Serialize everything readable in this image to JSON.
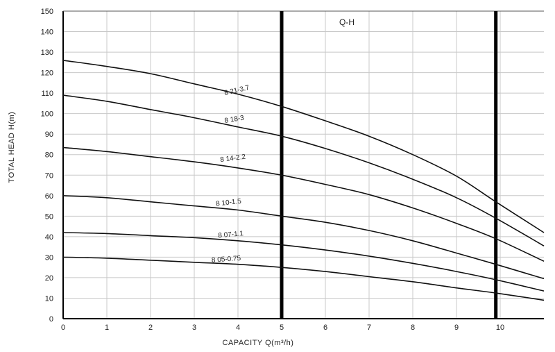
{
  "chart_data": {
    "type": "line",
    "title": "Q-H",
    "xlabel": "CAPACITY Q(m³/h)",
    "ylabel": "TOTAL HEAD H(m)",
    "xlim": [
      0,
      11
    ],
    "ylim": [
      0,
      150
    ],
    "x_ticks": [
      0,
      1,
      2,
      3,
      4,
      5,
      6,
      7,
      8,
      9,
      10
    ],
    "y_ticks": [
      0,
      10,
      20,
      30,
      40,
      50,
      60,
      70,
      80,
      90,
      100,
      110,
      120,
      130,
      140,
      150
    ],
    "grid": true,
    "reference_lines_x": [
      5,
      9.9
    ],
    "series": [
      {
        "name": "8 21-3.7",
        "x": [
          0,
          1,
          2,
          3,
          4,
          5,
          6,
          7,
          8,
          9,
          9.9,
          11
        ],
        "y": [
          126,
          123,
          119.5,
          114.5,
          109.5,
          103.5,
          96.5,
          89,
          80,
          69.5,
          57,
          42
        ]
      },
      {
        "name": "8 18-3",
        "x": [
          0,
          1,
          2,
          3,
          4,
          5,
          6,
          7,
          8,
          9,
          9.9,
          11
        ],
        "y": [
          109,
          106,
          102,
          98,
          93.5,
          89,
          83,
          76,
          68,
          59,
          49,
          35.5
        ]
      },
      {
        "name": "8 14-2.2",
        "x": [
          0,
          1,
          2,
          3,
          4,
          5,
          6,
          7,
          8,
          9,
          9.9,
          11
        ],
        "y": [
          83.5,
          81.5,
          79,
          76.5,
          73.5,
          70,
          65.5,
          60.5,
          54,
          46.5,
          39,
          28
        ]
      },
      {
        "name": "8 10-1.5",
        "x": [
          0,
          1,
          2,
          3,
          4,
          5,
          6,
          7,
          8,
          9,
          9.9,
          11
        ],
        "y": [
          60,
          59,
          57,
          55,
          53,
          50,
          47,
          43,
          38,
          32,
          26.5,
          19.5
        ]
      },
      {
        "name": "8 07-1.1",
        "x": [
          0,
          1,
          2,
          3,
          4,
          5,
          6,
          7,
          8,
          9,
          9.9,
          11
        ],
        "y": [
          42,
          41.5,
          40.5,
          39.5,
          38,
          36,
          33.5,
          30.5,
          27,
          23,
          19,
          13.5
        ]
      },
      {
        "name": "8 05-0.75",
        "x": [
          0,
          1,
          2,
          3,
          4,
          5,
          6,
          7,
          8,
          9,
          9.9,
          11
        ],
        "y": [
          30,
          29.5,
          28.5,
          27.5,
          26.5,
          25,
          23,
          20.5,
          18,
          15,
          12.5,
          9
        ]
      }
    ],
    "labels": [
      {
        "text": "8 21-3.7",
        "x": 3.7,
        "y": 109,
        "angle": -13
      },
      {
        "text": "8 18-3",
        "x": 3.7,
        "y": 95.5,
        "angle": -9
      },
      {
        "text": "8 14-2.2",
        "x": 3.6,
        "y": 76.5,
        "angle": -7
      },
      {
        "text": "8 10-1.5",
        "x": 3.5,
        "y": 55,
        "angle": -6
      },
      {
        "text": "8 07-1.1",
        "x": 3.55,
        "y": 39.5,
        "angle": -5
      },
      {
        "text": "8 05-0.75",
        "x": 3.4,
        "y": 27.5,
        "angle": -4
      }
    ],
    "colors": {
      "line": "#111111",
      "grid": "#c8c8c8",
      "frame": "#000000"
    }
  }
}
